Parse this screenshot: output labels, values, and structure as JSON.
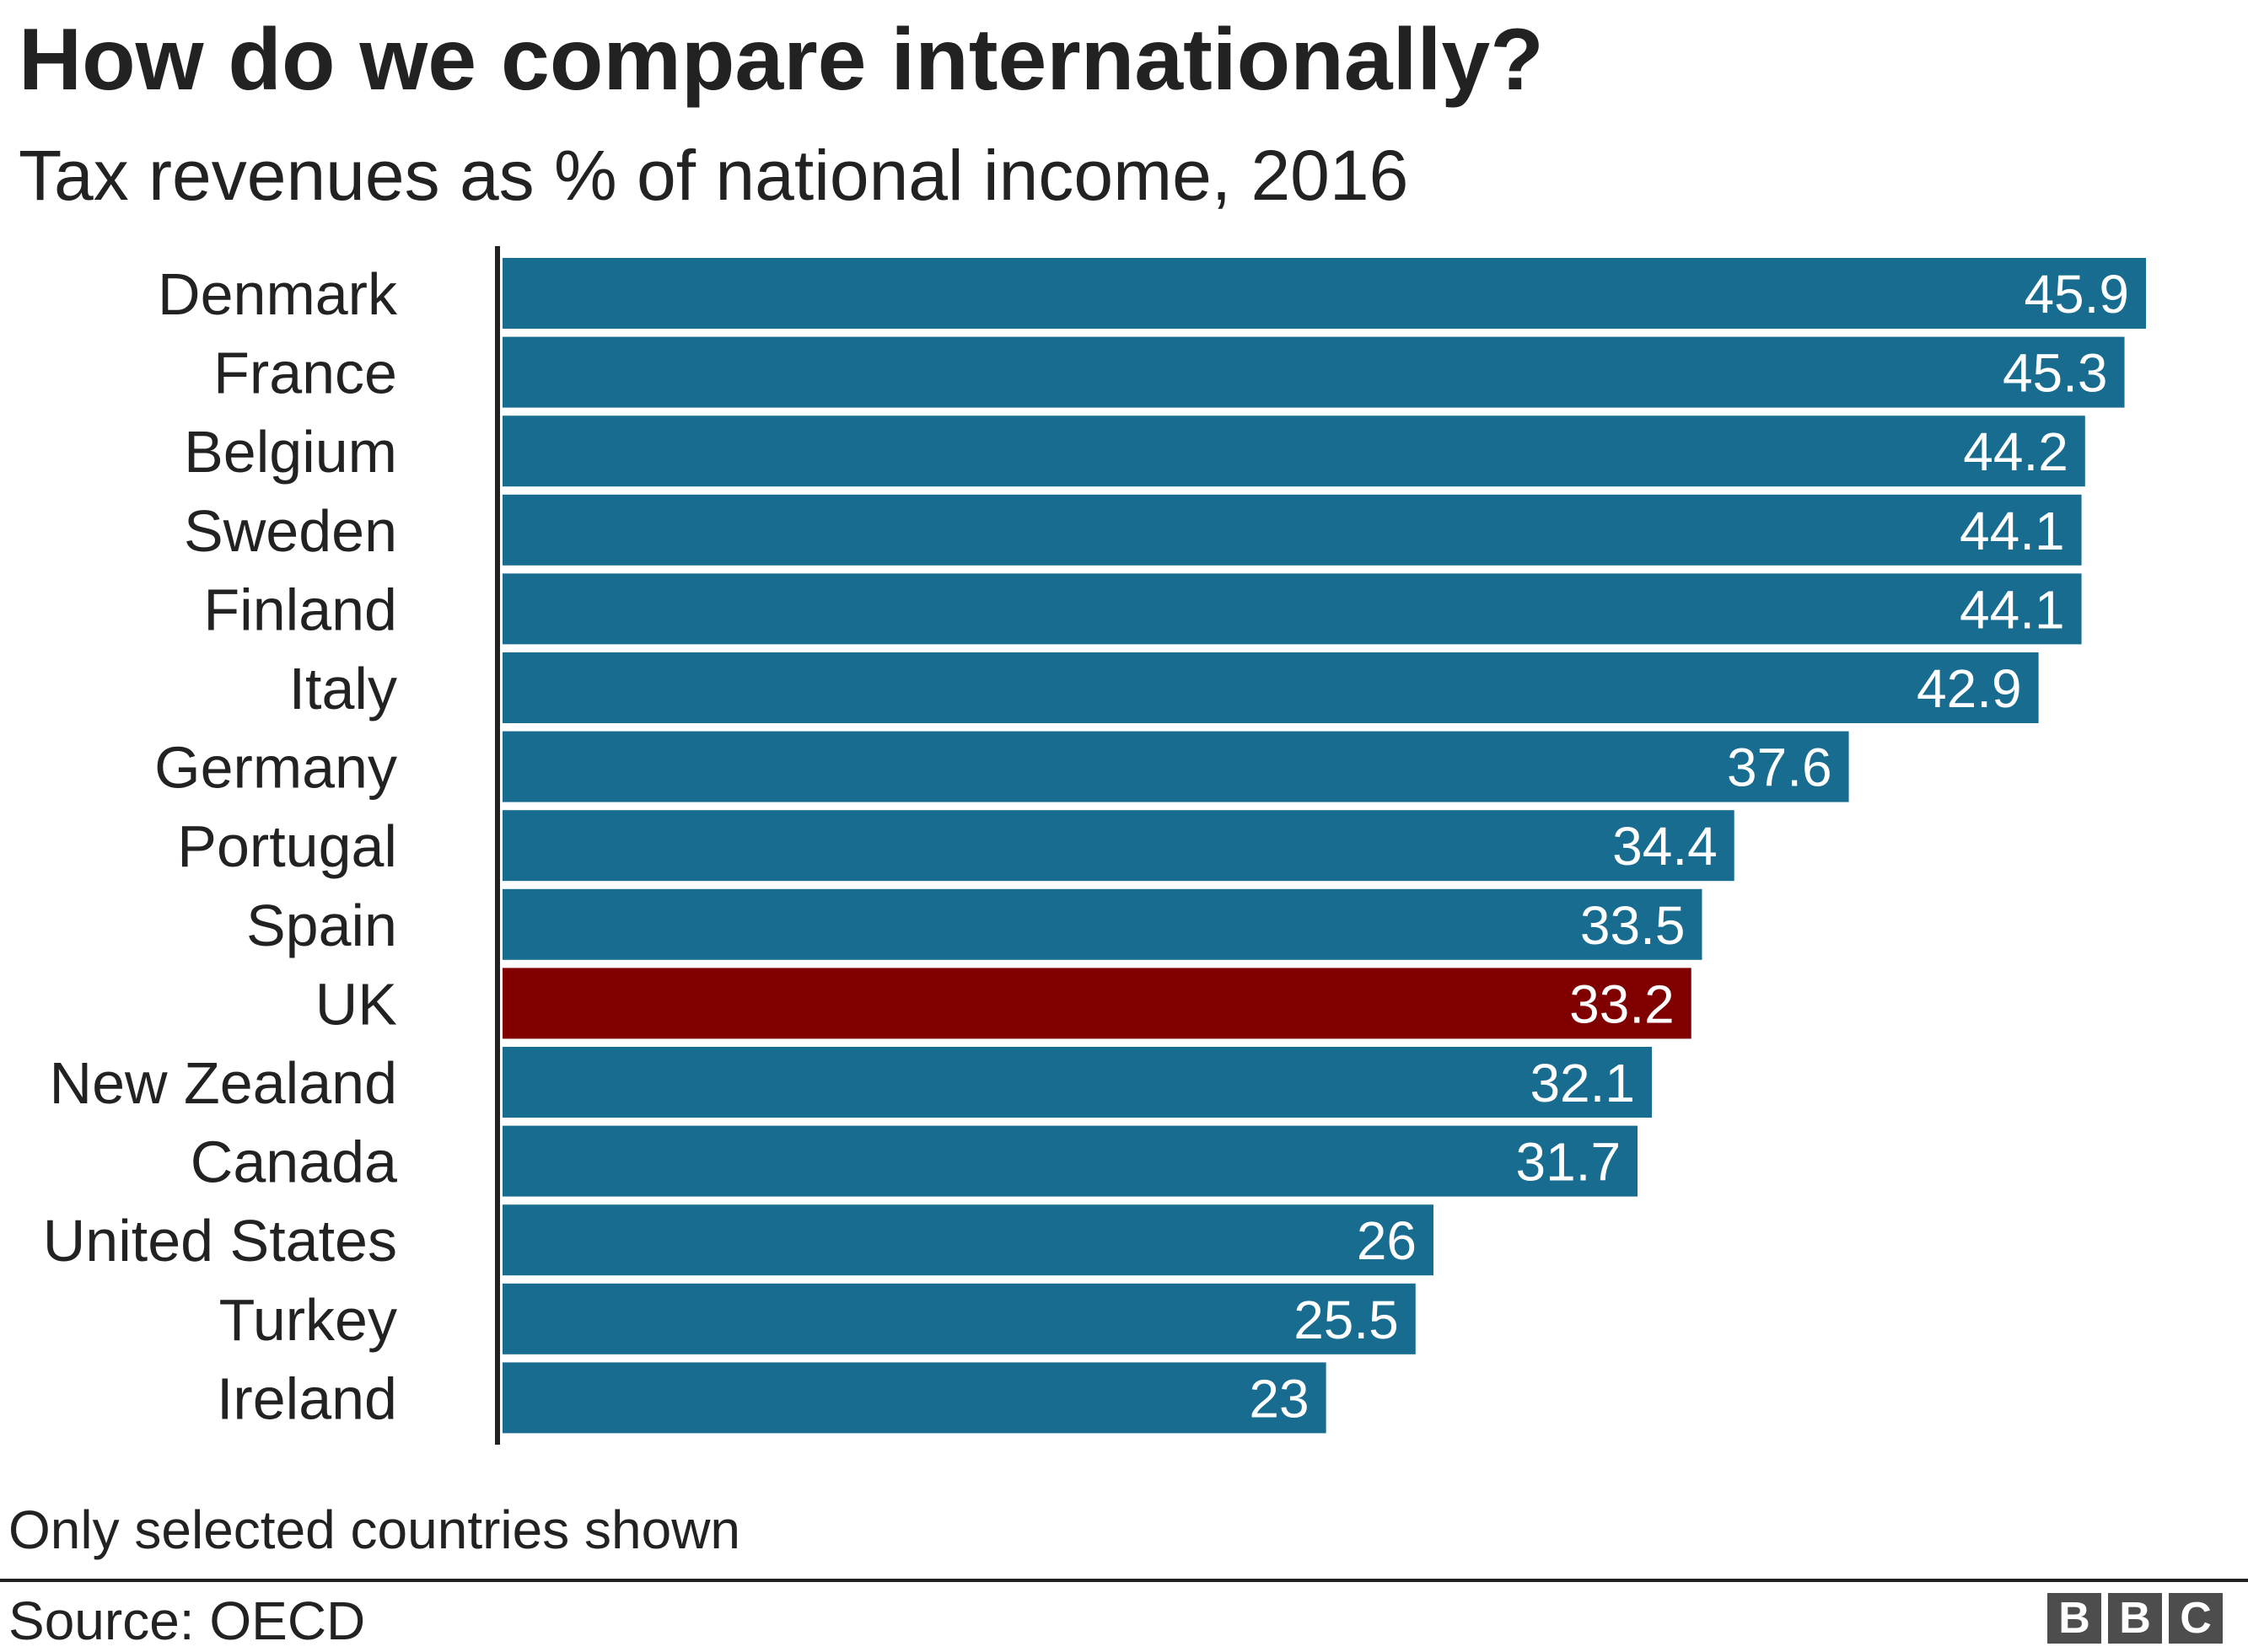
{
  "chart_data": {
    "type": "bar",
    "orientation": "horizontal",
    "title": "How do we compare internationally?",
    "subtitle": "Tax revenues as % of national income, 2016",
    "categories": [
      "Denmark",
      "France",
      "Belgium",
      "Sweden",
      "Finland",
      "Italy",
      "Germany",
      "Portugal",
      "Spain",
      "UK",
      "New Zealand",
      "Canada",
      "United States",
      "Turkey",
      "Ireland"
    ],
    "values": [
      45.9,
      45.3,
      44.2,
      44.1,
      44.1,
      42.9,
      37.6,
      34.4,
      33.5,
      33.2,
      32.1,
      31.7,
      26,
      25.5,
      23
    ],
    "highlight": "UK",
    "colors": {
      "bar": "#176c8f",
      "highlight": "#800000",
      "label": "#ffffff"
    },
    "xlim": [
      0,
      46
    ],
    "grid": false,
    "data_labels": true
  },
  "footer": {
    "note": "Only selected countries shown",
    "source": "Source: OECD",
    "logo": [
      "B",
      "B",
      "C"
    ]
  }
}
